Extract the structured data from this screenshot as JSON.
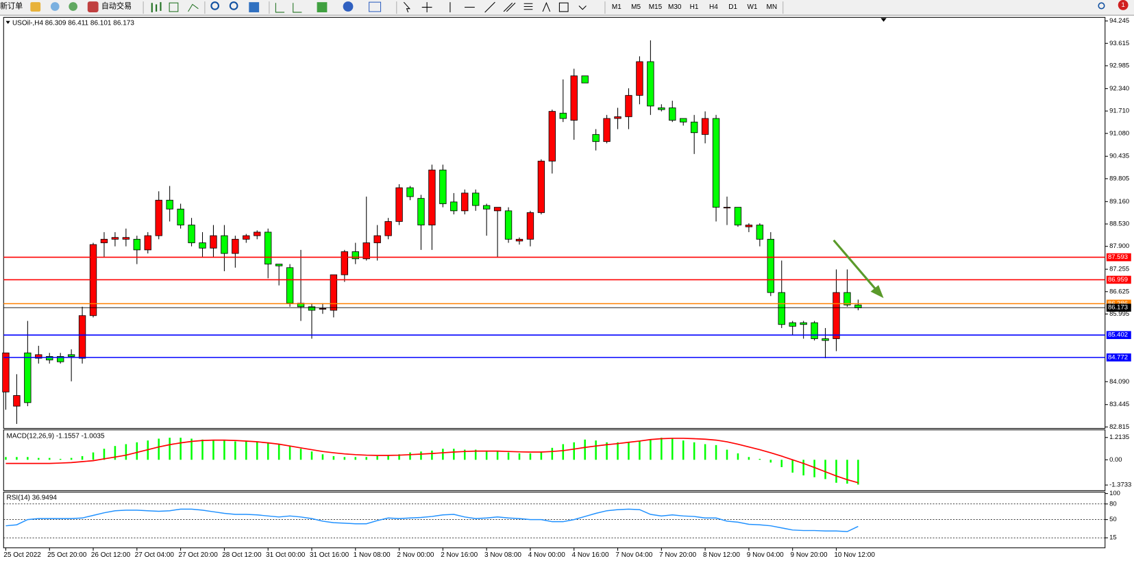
{
  "toolbar": {
    "new_order": "新订单",
    "auto_trade": "自动交易",
    "timeframes": [
      "M1",
      "M5",
      "M15",
      "M30",
      "H1",
      "H4",
      "D1",
      "W1",
      "MN"
    ],
    "notifications": 1
  },
  "chart_data": [
    {
      "type": "candlestick",
      "title": "USOil-,H4 86.309 86.411 86.101 86.173",
      "up_color": "#ff0000",
      "down_color": "#00ff00",
      "categories": [
        "25 Oct 2022",
        null,
        null,
        null,
        "25 Oct 20:00",
        null,
        null,
        null,
        "26 Oct 12:00",
        null,
        null,
        null,
        "27 Oct 04:00",
        null,
        null,
        null,
        "27 Oct 20:00",
        null,
        null,
        null,
        "28 Oct 12:00",
        null,
        null,
        null,
        "31 Oct 00:00",
        null,
        null,
        null,
        "31 Oct 16:00",
        null,
        null,
        null,
        "1 Nov 08:00",
        null,
        null,
        null,
        "2 Nov 00:00",
        null,
        null,
        null,
        "2 Nov 16:00",
        null,
        null,
        null,
        "3 Nov 08:00",
        null,
        null,
        null,
        "4 Nov 00:00",
        null,
        null,
        null,
        "4 Nov 16:00",
        null,
        null,
        null,
        "7 Nov 04:00",
        null,
        null,
        null,
        "7 Nov 20:00",
        null,
        null,
        null,
        "8 Nov 12:00",
        null,
        null,
        null,
        "9 Nov 04:00",
        null,
        null,
        null,
        "9 Nov 20:00",
        null,
        null,
        null,
        "10 Nov 12:00",
        null,
        null
      ],
      "open": [
        83.8,
        83.4,
        84.9,
        84.75,
        84.8,
        84.8,
        84.85,
        84.75,
        85.95,
        88.0,
        88.1,
        88.1,
        88.1,
        87.8,
        88.2,
        89.2,
        88.95,
        88.5,
        88.0,
        87.85,
        88.2,
        87.7,
        88.1,
        88.2,
        88.3,
        87.4,
        87.3,
        86.3,
        86.2,
        86.15,
        86.1,
        87.1,
        87.75,
        87.55,
        88.0,
        88.2,
        88.6,
        89.55,
        89.25,
        88.5,
        90.05,
        89.15,
        88.9,
        89.4,
        89.05,
        88.9,
        88.9,
        88.05,
        88.1,
        88.85,
        90.3,
        91.65,
        91.45,
        92.7,
        91.05,
        90.85,
        91.5,
        91.55,
        92.15,
        93.1,
        91.8,
        91.8,
        91.5,
        91.4,
        91.05,
        91.5,
        89.0,
        89.0,
        88.45,
        88.5,
        88.1,
        86.6,
        85.75,
        85.75,
        85.75,
        85.3,
        85.3,
        86.6,
        86.25
      ],
      "high": [
        84.9,
        84.3,
        85.8,
        85.1,
        84.9,
        84.9,
        85.0,
        86.2,
        88.0,
        88.3,
        88.3,
        88.4,
        88.2,
        88.3,
        89.45,
        89.6,
        89.1,
        88.7,
        88.3,
        88.5,
        88.5,
        88.2,
        88.25,
        88.35,
        88.4,
        87.4,
        87.4,
        87.8,
        86.3,
        86.3,
        87.1,
        87.8,
        88.0,
        89.3,
        88.5,
        88.7,
        89.65,
        89.6,
        89.35,
        90.2,
        90.2,
        89.4,
        89.5,
        89.5,
        89.1,
        89.0,
        89.0,
        88.15,
        88.9,
        90.35,
        91.75,
        92.6,
        92.9,
        92.7,
        91.2,
        91.6,
        91.8,
        92.35,
        93.25,
        93.7,
        91.9,
        92.0,
        91.5,
        91.6,
        91.7,
        91.6,
        89.3,
        89.0,
        88.55,
        88.55,
        88.3,
        87.5,
        85.8,
        85.8,
        85.8,
        85.6,
        87.25,
        87.25,
        86.4
      ],
      "low": [
        83.3,
        82.9,
        83.4,
        84.6,
        84.6,
        84.6,
        84.1,
        84.6,
        85.9,
        87.6,
        87.9,
        87.9,
        87.4,
        87.7,
        88.1,
        88.6,
        88.4,
        87.9,
        87.6,
        87.6,
        87.2,
        87.3,
        88.0,
        88.1,
        87.0,
        86.8,
        86.2,
        85.8,
        85.3,
        86.0,
        85.9,
        86.9,
        87.4,
        87.5,
        87.5,
        88.1,
        88.5,
        89.2,
        87.8,
        87.8,
        89.0,
        88.8,
        88.8,
        88.9,
        88.2,
        87.6,
        88.0,
        87.95,
        87.9,
        88.8,
        89.95,
        91.4,
        90.9,
        92.5,
        90.6,
        90.8,
        91.2,
        91.2,
        91.9,
        91.6,
        91.7,
        91.4,
        91.3,
        90.5,
        90.8,
        88.6,
        88.5,
        88.45,
        88.3,
        87.9,
        86.5,
        85.6,
        85.4,
        85.3,
        85.25,
        84.75,
        84.95,
        86.2,
        86.1
      ],
      "close": [
        84.9,
        83.7,
        83.5,
        84.85,
        84.7,
        84.65,
        84.8,
        85.95,
        87.95,
        88.1,
        88.15,
        88.15,
        87.8,
        88.2,
        89.2,
        88.95,
        88.5,
        88.0,
        87.85,
        88.2,
        87.7,
        88.1,
        88.2,
        88.3,
        87.4,
        87.35,
        86.3,
        86.2,
        86.1,
        86.15,
        87.1,
        87.75,
        87.55,
        88.0,
        88.2,
        88.6,
        89.55,
        89.3,
        88.5,
        90.05,
        89.1,
        88.9,
        89.4,
        89.05,
        88.95,
        89.0,
        88.1,
        88.1,
        88.85,
        90.3,
        91.7,
        91.5,
        92.7,
        92.5,
        90.85,
        91.5,
        91.55,
        92.15,
        93.1,
        91.85,
        91.75,
        91.45,
        91.4,
        91.1,
        91.5,
        89.0,
        89.0,
        88.5,
        88.5,
        88.1,
        86.6,
        85.7,
        85.65,
        85.7,
        85.3,
        85.25,
        86.6,
        86.25,
        86.17
      ],
      "ylim": [
        82.815,
        94.245
      ],
      "yticks": [
        82.815,
        83.445,
        {
          "value": 84.09,
          "label": "84.090"
        },
        85.995,
        86.625,
        87.255,
        {
          "value": 87.9,
          "label": "87.900"
        },
        {
          "value": 88.53,
          "label": "88.530"
        },
        {
          "value": 89.16,
          "label": "89.160"
        },
        89.805,
        90.435,
        {
          "value": 91.08,
          "label": "91.080"
        },
        {
          "value": 91.71,
          "label": "91.710"
        },
        {
          "value": 92.34,
          "label": "92.340"
        },
        92.985,
        93.615,
        94.245
      ],
      "levels": [
        {
          "value": 87.593,
          "color": "#ff0000"
        },
        {
          "value": 86.959,
          "color": "#ff0000"
        },
        {
          "value": 86.286,
          "color": "#ff8000"
        },
        {
          "value": 86.173,
          "color": "#000000"
        },
        {
          "value": 85.402,
          "color": "#0000ff"
        },
        {
          "value": 84.772,
          "color": "#0000ff"
        }
      ]
    },
    {
      "type": "macd",
      "title": "MACD(12,26,9) -1.1557 -1.0035",
      "ylim": [
        -1.6,
        1.55
      ],
      "yticks": [
        -1.3733,
        {
          "value": 0,
          "label": "0.00"
        },
        1.2135
      ],
      "series": [
        {
          "style": "bar",
          "color": "#00ff00",
          "values": [
            0.15,
            0.15,
            0.15,
            0.1,
            0.1,
            0.05,
            0.1,
            0.2,
            0.4,
            0.6,
            0.75,
            0.85,
            0.95,
            1.05,
            1.15,
            1.2,
            1.2,
            1.15,
            1.1,
            1.05,
            1.05,
            1.0,
            1.0,
            1.0,
            0.95,
            0.85,
            0.75,
            0.6,
            0.45,
            0.3,
            0.2,
            0.15,
            0.15,
            0.15,
            0.2,
            0.25,
            0.3,
            0.4,
            0.45,
            0.5,
            0.6,
            0.6,
            0.55,
            0.55,
            0.5,
            0.45,
            0.4,
            0.35,
            0.35,
            0.45,
            0.65,
            0.85,
            0.95,
            1.1,
            1.05,
            0.95,
            0.95,
            0.95,
            1.0,
            1.1,
            1.2,
            1.15,
            1.05,
            0.95,
            0.85,
            0.8,
            0.55,
            0.35,
            0.15,
            0.05,
            -0.15,
            -0.4,
            -0.7,
            -0.85,
            -0.95,
            -1.05,
            -1.25,
            -1.3,
            -1.35
          ]
        },
        {
          "style": "line",
          "color": "#ff0000",
          "values": [
            -0.2,
            -0.2,
            -0.2,
            -0.2,
            -0.2,
            -0.18,
            -0.15,
            -0.1,
            -0.05,
            0.05,
            0.15,
            0.25,
            0.4,
            0.55,
            0.7,
            0.82,
            0.92,
            1.0,
            1.05,
            1.07,
            1.07,
            1.05,
            1.02,
            0.98,
            0.92,
            0.85,
            0.75,
            0.65,
            0.55,
            0.45,
            0.38,
            0.32,
            0.28,
            0.25,
            0.24,
            0.24,
            0.25,
            0.28,
            0.31,
            0.34,
            0.38,
            0.42,
            0.45,
            0.47,
            0.47,
            0.47,
            0.45,
            0.43,
            0.42,
            0.42,
            0.45,
            0.5,
            0.58,
            0.67,
            0.75,
            0.82,
            0.88,
            0.95,
            1.02,
            1.1,
            1.15,
            1.17,
            1.17,
            1.15,
            1.12,
            1.07,
            0.98,
            0.85,
            0.7,
            0.55,
            0.38,
            0.2,
            0.0,
            -0.2,
            -0.42,
            -0.65,
            -0.88,
            -1.08,
            -1.25
          ]
        }
      ]
    },
    {
      "type": "line",
      "title": "RSI(14) 36.9494",
      "ylim": [
        0,
        100
      ],
      "yticks": [
        15,
        50,
        80,
        100
      ],
      "levels": [
        15,
        50,
        80
      ],
      "series": [
        {
          "color": "#1e90ff",
          "values": [
            38,
            40,
            50,
            52,
            52,
            52,
            52,
            53,
            58,
            63,
            67,
            68,
            68,
            67,
            66,
            67,
            70,
            70,
            68,
            65,
            62,
            60,
            60,
            59,
            57,
            55,
            57,
            55,
            52,
            47,
            44,
            43,
            42,
            42,
            48,
            53,
            52,
            53,
            54,
            56,
            59,
            60,
            55,
            52,
            53,
            55,
            53,
            52,
            50,
            50,
            46,
            46,
            50,
            56,
            62,
            67,
            69,
            70,
            69,
            60,
            57,
            59,
            57,
            56,
            53,
            53,
            47,
            45,
            41,
            40,
            38,
            34,
            30,
            29,
            29,
            28,
            28,
            27,
            37
          ]
        }
      ]
    }
  ]
}
